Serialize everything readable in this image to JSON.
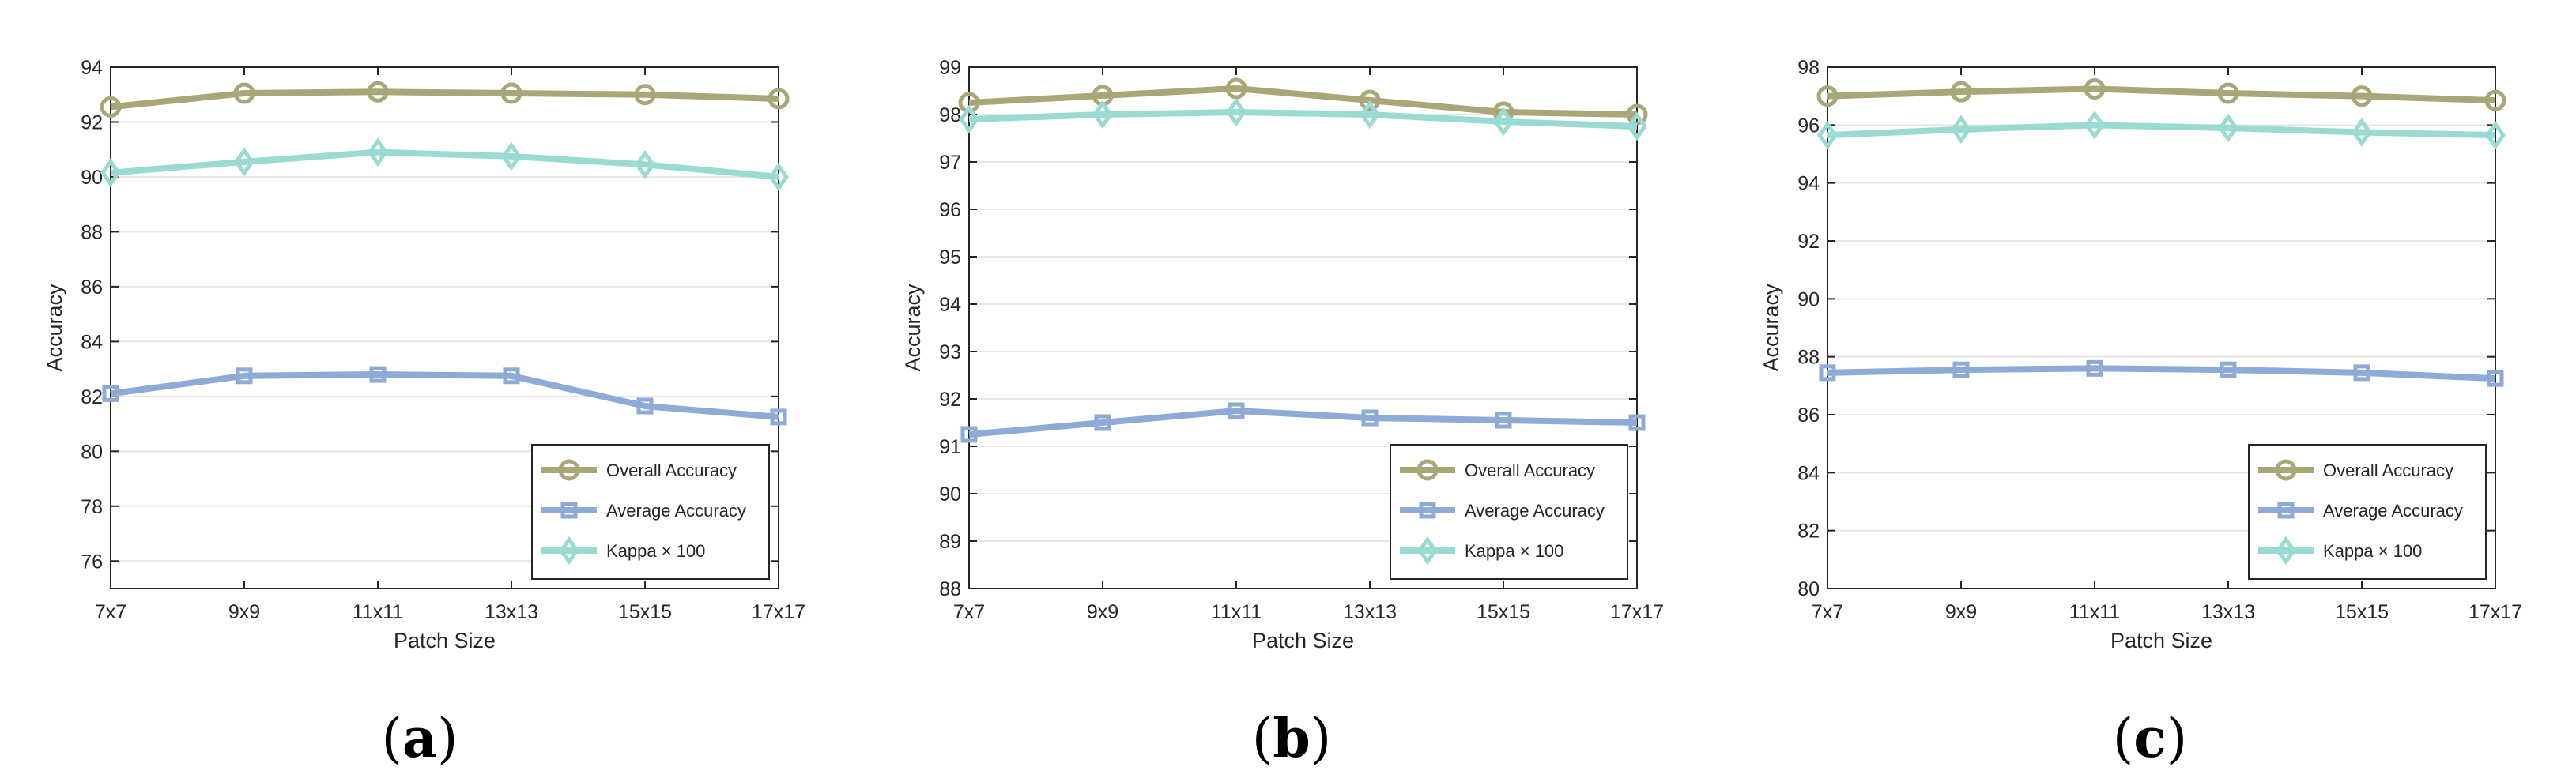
{
  "colors": {
    "overall": "#a9a677",
    "average": "#8eaad6",
    "kappa": "#99dbd3",
    "axis": "#262626",
    "grid": "#e6e6e6"
  },
  "chart_data": [
    {
      "type": "line",
      "panel_label_parts": [
        "(",
        "a",
        ")"
      ],
      "xlabel": "Patch Size",
      "ylabel": "Accuracy",
      "categories": [
        "7x7",
        "9x9",
        "11x11",
        "13x13",
        "15x15",
        "17x17"
      ],
      "ylim": [
        75,
        94
      ],
      "yticks": [
        76,
        78,
        80,
        82,
        84,
        86,
        88,
        90,
        92,
        94
      ],
      "legend_position": "bottom-right",
      "grid": true,
      "series": [
        {
          "name": "Overall Accuracy",
          "marker": "circle",
          "values": [
            92.55,
            93.05,
            93.1,
            93.05,
            93.0,
            92.85
          ]
        },
        {
          "name": "Average Accuracy",
          "marker": "square",
          "values": [
            82.1,
            82.75,
            82.8,
            82.75,
            81.65,
            81.25
          ]
        },
        {
          "name": "Kappa × 100",
          "marker": "diamond",
          "values": [
            90.15,
            90.55,
            90.9,
            90.75,
            90.45,
            90.0
          ]
        }
      ]
    },
    {
      "type": "line",
      "panel_label_parts": [
        "(",
        "b",
        ")"
      ],
      "xlabel": "Patch Size",
      "ylabel": "Accuracy",
      "categories": [
        "7x7",
        "9x9",
        "11x11",
        "13x13",
        "15x15",
        "17x17"
      ],
      "ylim": [
        88,
        99
      ],
      "yticks": [
        88,
        89,
        90,
        91,
        92,
        93,
        94,
        95,
        96,
        97,
        98,
        99
      ],
      "legend_position": "bottom-right",
      "grid": true,
      "series": [
        {
          "name": "Overall Accuracy",
          "marker": "circle",
          "values": [
            98.25,
            98.4,
            98.55,
            98.3,
            98.05,
            98.0
          ]
        },
        {
          "name": "Average Accuracy",
          "marker": "square",
          "values": [
            91.25,
            91.5,
            91.75,
            91.6,
            91.55,
            91.5
          ]
        },
        {
          "name": "Kappa × 100",
          "marker": "diamond",
          "values": [
            97.9,
            98.0,
            98.05,
            98.0,
            97.85,
            97.75
          ]
        }
      ]
    },
    {
      "type": "line",
      "panel_label_parts": [
        "(",
        "c",
        ")"
      ],
      "xlabel": "Patch Size",
      "ylabel": "Accuracy",
      "categories": [
        "7x7",
        "9x9",
        "11x11",
        "13x13",
        "15x15",
        "17x17"
      ],
      "ylim": [
        80,
        98
      ],
      "yticks": [
        80,
        82,
        84,
        86,
        88,
        90,
        92,
        94,
        96,
        98
      ],
      "legend_position": "bottom-right",
      "grid": true,
      "series": [
        {
          "name": "Overall Accuracy",
          "marker": "circle",
          "values": [
            97.0,
            97.15,
            97.25,
            97.1,
            97.0,
            96.85
          ]
        },
        {
          "name": "Average Accuracy",
          "marker": "square",
          "values": [
            87.45,
            87.55,
            87.6,
            87.55,
            87.45,
            87.25
          ]
        },
        {
          "name": "Kappa × 100",
          "marker": "diamond",
          "values": [
            95.65,
            95.85,
            96.0,
            95.9,
            95.75,
            95.65
          ]
        }
      ]
    }
  ]
}
